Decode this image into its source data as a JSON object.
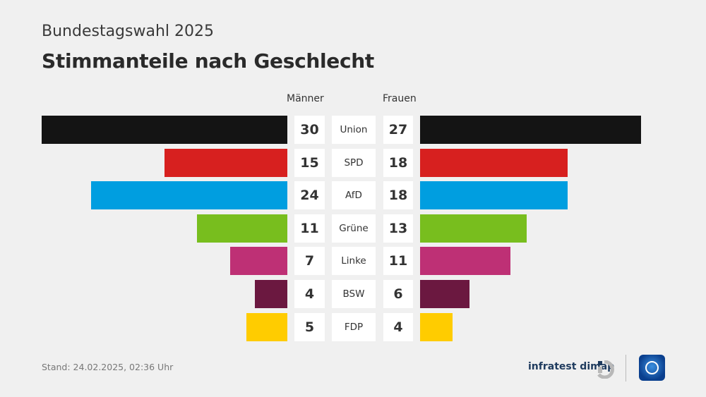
{
  "header": {
    "subtitle": "Bundestagswahl 2025",
    "title": "Stimmanteile nach Geschlecht"
  },
  "chart_data": {
    "type": "bar",
    "orientation": "horizontal-butterfly",
    "categories": [
      "Union",
      "SPD",
      "AfD",
      "Grüne",
      "Linke",
      "BSW",
      "FDP"
    ],
    "series": [
      {
        "name": "Männer",
        "values": [
          30,
          15,
          24,
          11,
          7,
          4,
          5
        ]
      },
      {
        "name": "Frauen",
        "values": [
          27,
          18,
          18,
          13,
          11,
          6,
          4
        ]
      }
    ],
    "colors": [
      "#141414",
      "#d7201f",
      "#009ee0",
      "#78be1e",
      "#be3075",
      "#6b1840",
      "#ffcc00"
    ],
    "unit": "%"
  },
  "footer": {
    "stand": "Stand:  24.02.2025, 02:36 Uhr",
    "brand": "infratest dimap"
  }
}
